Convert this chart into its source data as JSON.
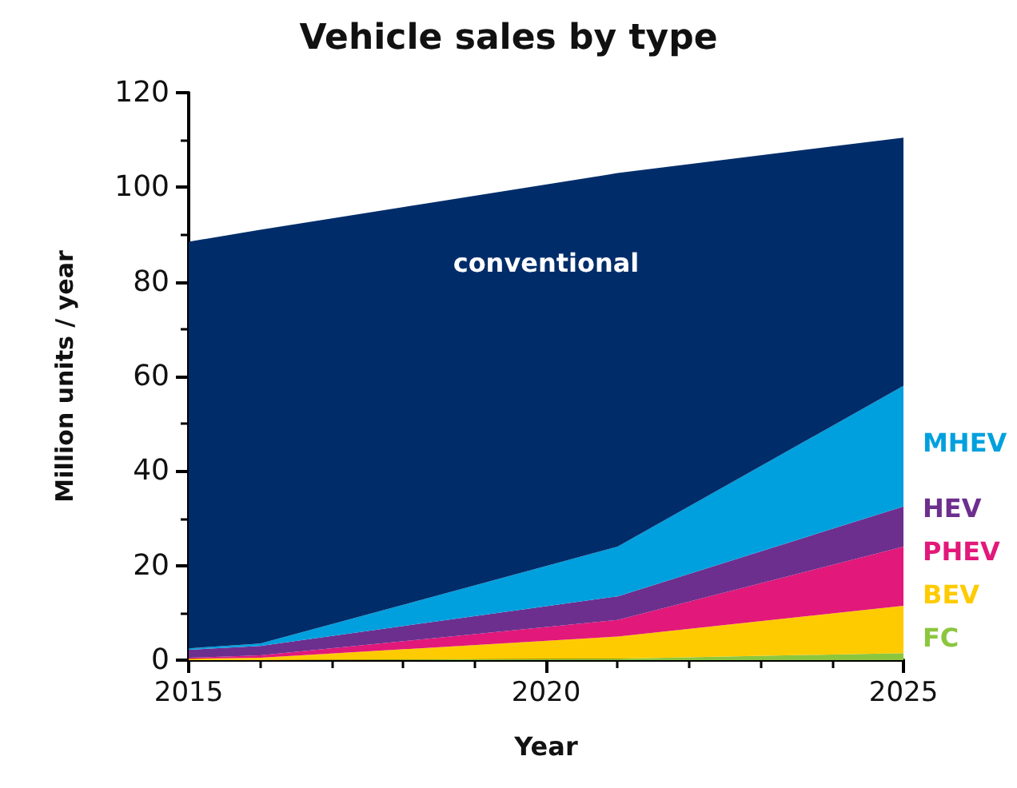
{
  "chart_data": {
    "type": "area",
    "title": "Vehicle sales by type",
    "xlabel": "Year",
    "ylabel": "Million units / year",
    "stacked": true,
    "legend": false,
    "grid": false,
    "x": [
      2015,
      2016,
      2021,
      2025
    ],
    "series": [
      {
        "name": "FC",
        "color": "#8cc63f",
        "values": [
          0,
          0,
          0.3,
          1.5
        ]
      },
      {
        "name": "BEV",
        "color": "#fecb00",
        "values": [
          0.3,
          0.5,
          4.7,
          10
        ]
      },
      {
        "name": "PHEV",
        "color": "#e2187a",
        "values": [
          0.2,
          0.5,
          3.5,
          12.5
        ]
      },
      {
        "name": "HEV",
        "color": "#6d2f8e",
        "values": [
          1.7,
          2,
          5,
          8.5
        ]
      },
      {
        "name": "MHEV",
        "color": "#00a0de",
        "values": [
          0.3,
          0.5,
          10.5,
          25.5
        ]
      },
      {
        "name": "conventional",
        "color": "#002d6a",
        "values": [
          86,
          87.5,
          79,
          52.5
        ]
      }
    ],
    "xlim": [
      2015,
      2025
    ],
    "xticks": [
      2015,
      2020,
      2025
    ],
    "ylim": [
      0,
      120
    ],
    "yticks": [
      0,
      20,
      40,
      60,
      80,
      100,
      120
    ]
  }
}
